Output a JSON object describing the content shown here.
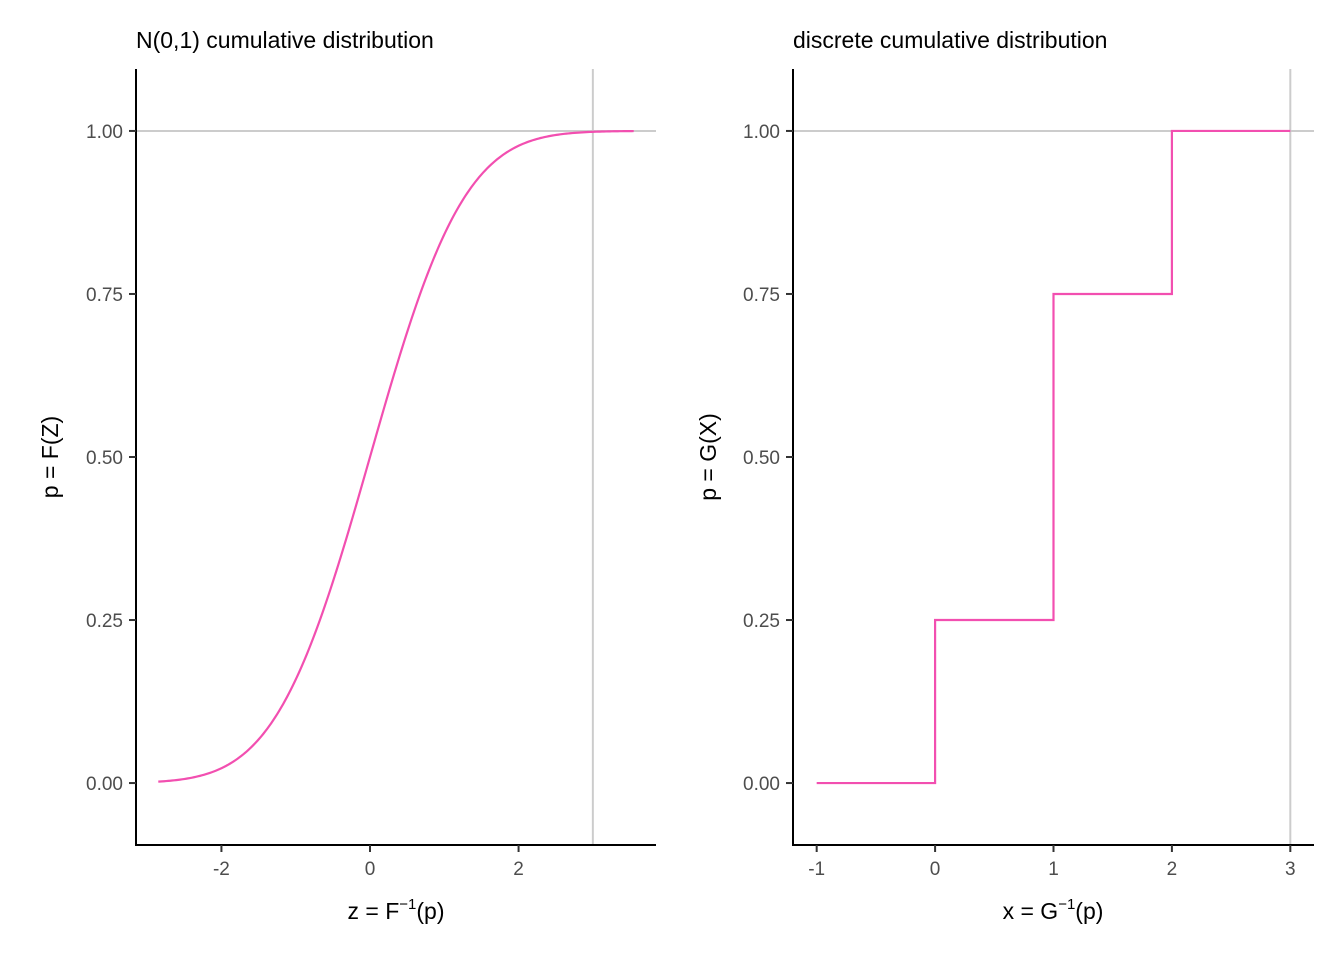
{
  "chart_data": [
    {
      "type": "line",
      "title": "N(0,1) cumulative distribution",
      "xlabel": {
        "base": "z = F",
        "sup": "−1",
        "tail": "(p)"
      },
      "ylabel": "p = F(Z)",
      "xlim": [
        -3.15,
        3.85
      ],
      "ylim": [
        -0.095,
        1.095
      ],
      "x_ticks": [
        {
          "value": -2,
          "label": "-2"
        },
        {
          "value": 0,
          "label": "0"
        },
        {
          "value": 2,
          "label": "2"
        }
      ],
      "y_ticks": [
        {
          "value": 0,
          "label": "0.00"
        },
        {
          "value": 0.25,
          "label": "0.25"
        },
        {
          "value": 0.5,
          "label": "0.50"
        },
        {
          "value": 0.75,
          "label": "0.75"
        },
        {
          "value": 1,
          "label": "1.00"
        }
      ],
      "reference_lines": {
        "h": 1,
        "v": 3
      },
      "series": [
        {
          "curve": "normal_cdf",
          "x_range": [
            -2.85,
            3.55
          ],
          "color": "#f24fb0"
        }
      ]
    },
    {
      "type": "line",
      "title": "discrete cumulative distribution",
      "xlabel": {
        "base": "x = G",
        "sup": "−1",
        "tail": "(p)"
      },
      "ylabel": "p = G(X)",
      "xlim": [
        -1.2,
        3.2
      ],
      "ylim": [
        -0.095,
        1.095
      ],
      "x_ticks": [
        {
          "value": -1,
          "label": "-1"
        },
        {
          "value": 0,
          "label": "0"
        },
        {
          "value": 1,
          "label": "1"
        },
        {
          "value": 2,
          "label": "2"
        },
        {
          "value": 3,
          "label": "3"
        }
      ],
      "y_ticks": [
        {
          "value": 0,
          "label": "0.00"
        },
        {
          "value": 0.25,
          "label": "0.25"
        },
        {
          "value": 0.5,
          "label": "0.50"
        },
        {
          "value": 0.75,
          "label": "0.75"
        },
        {
          "value": 1,
          "label": "1.00"
        }
      ],
      "reference_lines": {
        "h": 1,
        "v": 3
      },
      "series": [
        {
          "curve": "step",
          "color": "#f24fb0",
          "points": [
            [
              -1,
              0
            ],
            [
              0,
              0
            ],
            [
              0,
              0.25
            ],
            [
              1,
              0.25
            ],
            [
              1,
              0.75
            ],
            [
              2,
              0.75
            ],
            [
              2,
              1
            ],
            [
              3,
              1
            ]
          ]
        }
      ]
    }
  ],
  "colors": {
    "curve": "#f24fb0",
    "reference": "#cccccc",
    "axis": "#000000"
  }
}
